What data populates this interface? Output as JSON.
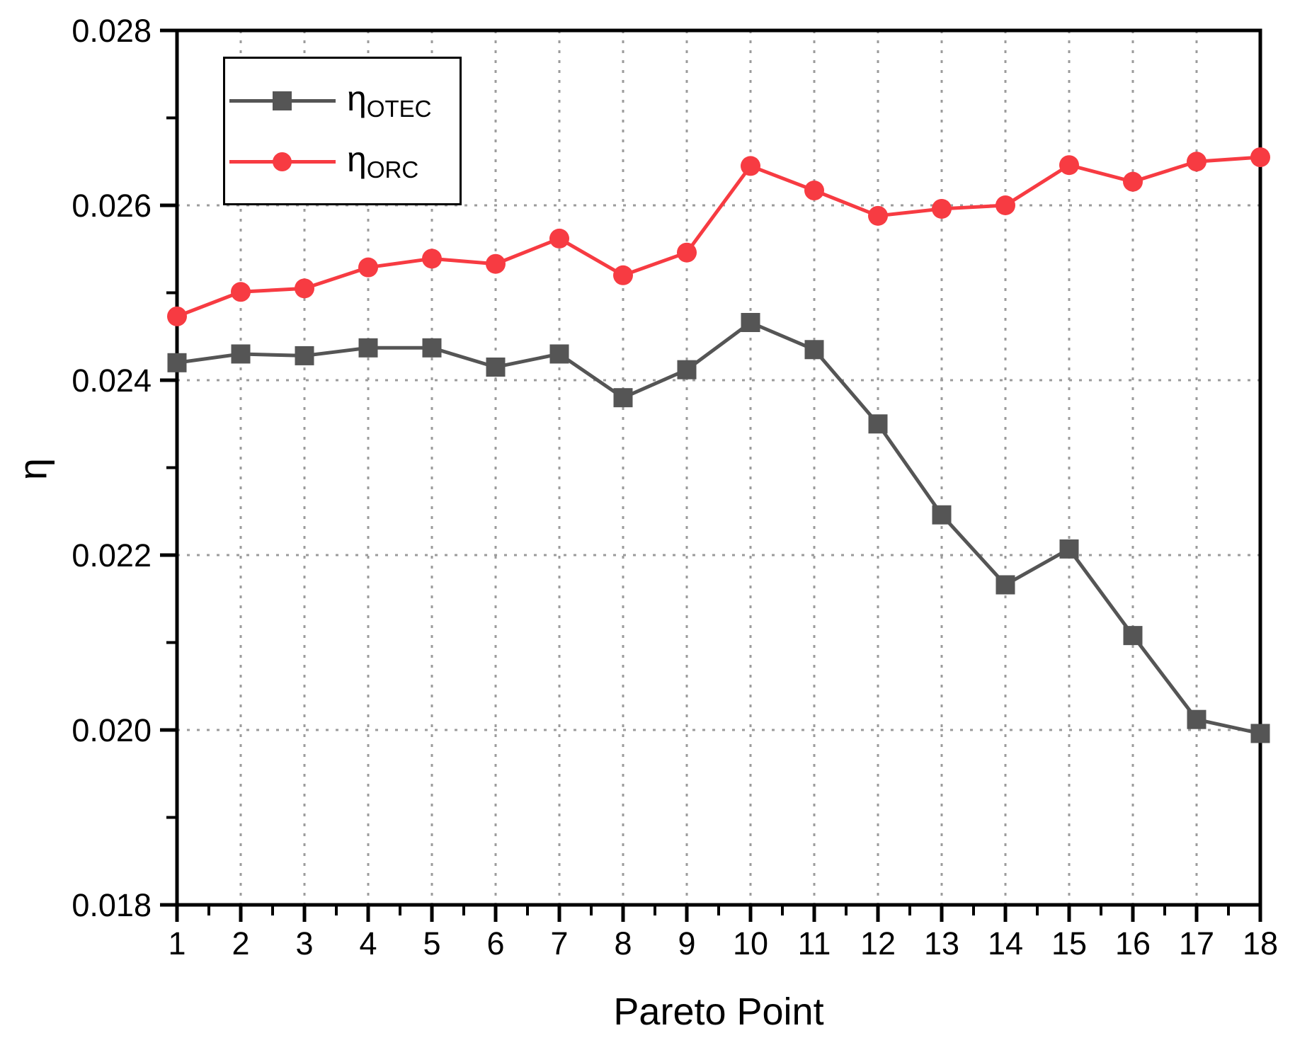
{
  "chart_data": {
    "type": "line",
    "title": "",
    "xlabel": "Pareto Point",
    "ylabel": "η",
    "x": [
      1,
      2,
      3,
      4,
      5,
      6,
      7,
      8,
      9,
      10,
      11,
      12,
      13,
      14,
      15,
      16,
      17,
      18
    ],
    "xtick_labels": [
      "1",
      "2",
      "3",
      "4",
      "5",
      "6",
      "7",
      "8",
      "9",
      "10",
      "11",
      "12",
      "13",
      "14",
      "15",
      "16",
      "17",
      "18"
    ],
    "xlim": [
      1,
      18
    ],
    "ylim": [
      0.018,
      0.028
    ],
    "ytick_labels": [
      "0.018",
      "0.020",
      "0.022",
      "0.024",
      "0.026",
      "0.028"
    ],
    "ytick_values": [
      0.018,
      0.02,
      0.022,
      0.024,
      0.026,
      0.028
    ],
    "ytick_minor_values": [
      0.019,
      0.021,
      0.023,
      0.025,
      0.027
    ],
    "grid": "dotted",
    "grid_color": "#9B9B9B",
    "axis_color": "#000000",
    "legend_position": "top-left",
    "series": [
      {
        "name": "η_OTEC",
        "symbol": "η",
        "subscript": "OTEC",
        "marker": "square",
        "color": "#555555",
        "values": [
          0.0242,
          0.0243,
          0.02428,
          0.02437,
          0.02437,
          0.02415,
          0.0243,
          0.0238,
          0.02412,
          0.02466,
          0.02435,
          0.0235,
          0.02246,
          0.02166,
          0.02207,
          0.02108,
          0.02012,
          0.01996
        ]
      },
      {
        "name": "η_ORC",
        "symbol": "η",
        "subscript": "ORC",
        "marker": "circle",
        "color": "#F73B42",
        "values": [
          0.02473,
          0.02501,
          0.02505,
          0.02529,
          0.02539,
          0.02533,
          0.02562,
          0.0252,
          0.02546,
          0.02645,
          0.02617,
          0.02588,
          0.02596,
          0.026,
          0.02646,
          0.02627,
          0.0265,
          0.02655
        ]
      }
    ]
  }
}
